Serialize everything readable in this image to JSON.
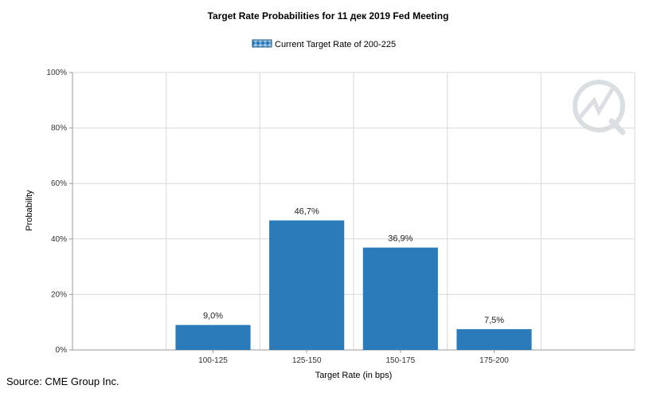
{
  "chart_data": {
    "type": "bar",
    "title": "Target Rate Probabilities for 11 дек 2019 Fed Meeting",
    "xlabel": "Target Rate (in bps)",
    "ylabel": "Probability",
    "categories": [
      "",
      "100-125",
      "125-150",
      "150-175",
      "175-200",
      ""
    ],
    "series": [
      {
        "name": "Current Target Rate of 200-225",
        "values": [
          null,
          9.0,
          46.7,
          36.9,
          7.5,
          null
        ],
        "data_labels": [
          "",
          "9,0%",
          "46,7%",
          "36,9%",
          "7,5%",
          ""
        ]
      }
    ],
    "ylim": [
      0,
      100
    ],
    "yticks": [
      0,
      20,
      40,
      60,
      80,
      100
    ],
    "ytick_labels": [
      "0%",
      "20%",
      "40%",
      "60%",
      "80%",
      "100%"
    ],
    "grid": true,
    "legend_position": "top-center",
    "colors": {
      "bar": "#2b7bba",
      "grid": "#d9d9d9",
      "axis": "#999999"
    }
  },
  "footer": {
    "source": "Source: CME Group Inc."
  },
  "watermark_icon": "cme-fedwatch-logo-icon"
}
